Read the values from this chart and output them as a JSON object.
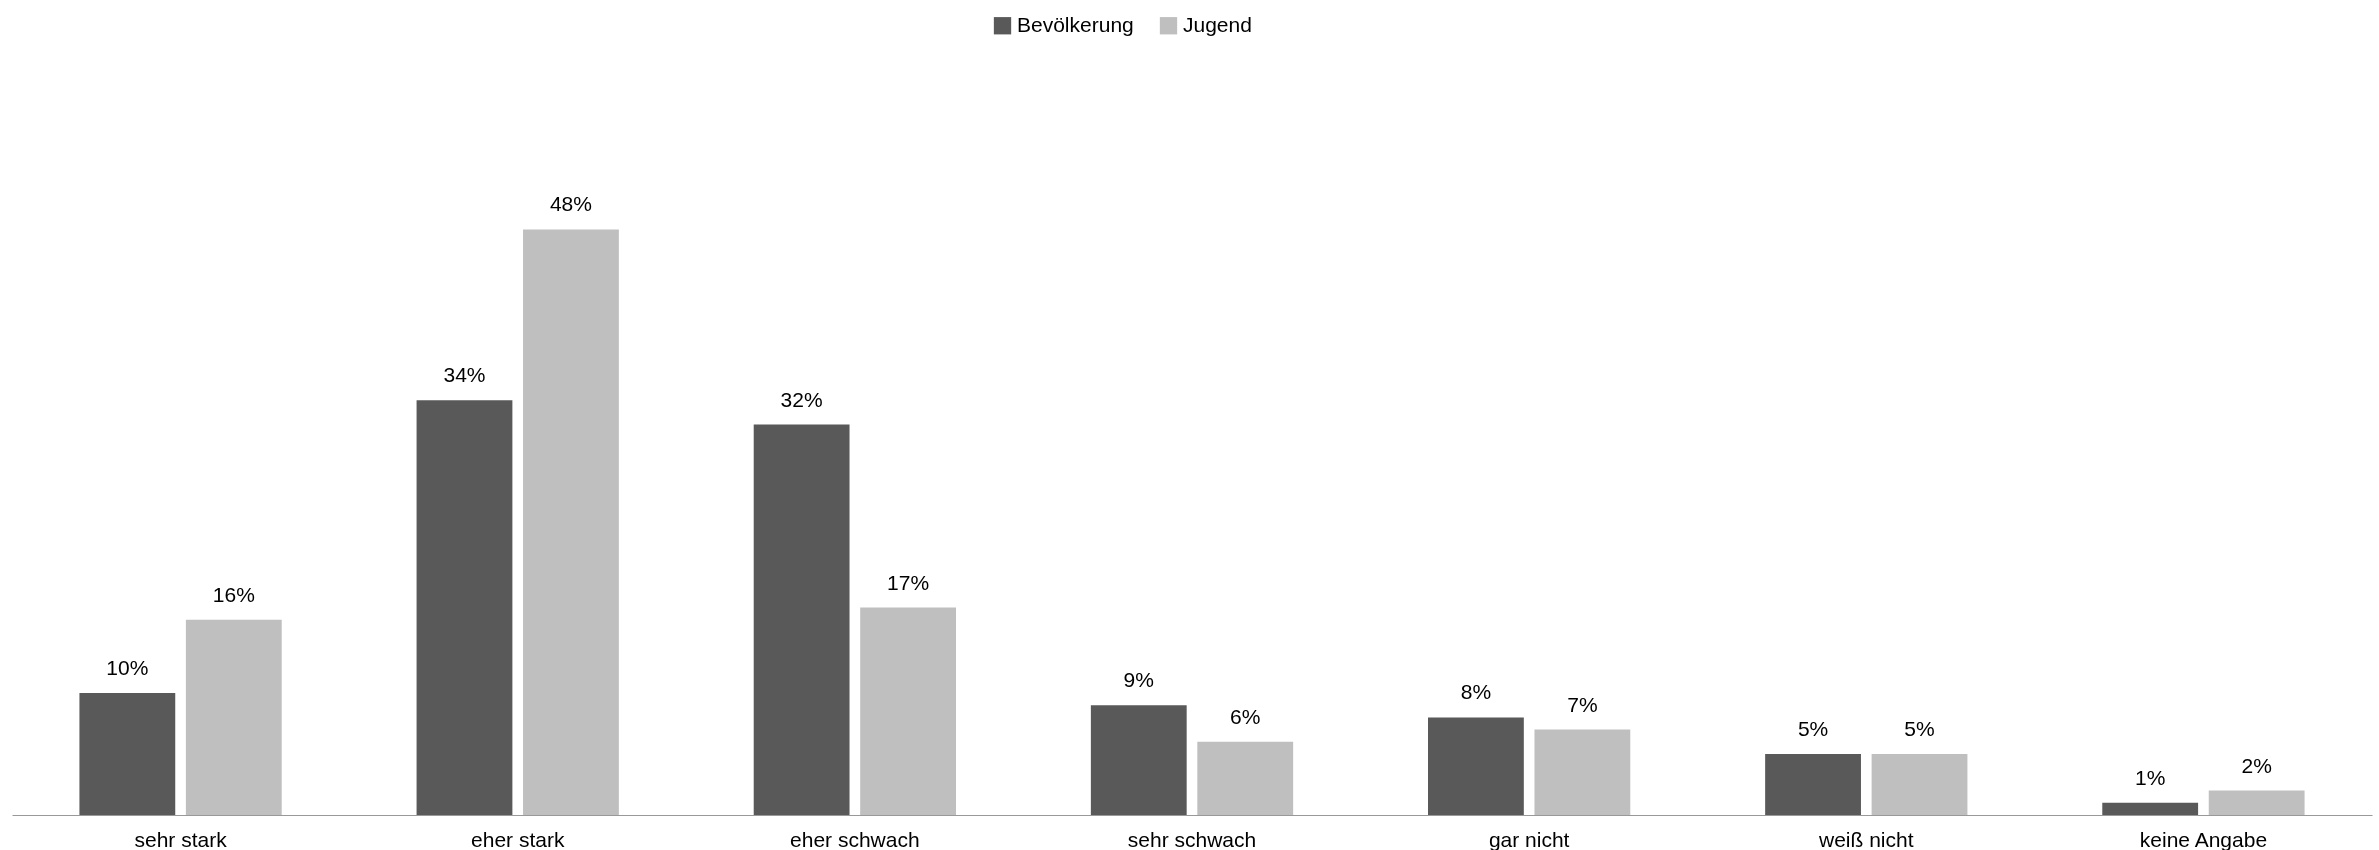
{
  "chart_data": {
    "type": "bar",
    "categories": [
      "sehr stark",
      "eher stark",
      "eher schwach",
      "sehr schwach",
      "gar nicht",
      "weiß nicht",
      "keine Angabe"
    ],
    "series": [
      {
        "name": "Bevölkerung",
        "color": "#595959",
        "values": [
          10,
          34,
          32,
          9,
          8,
          5,
          1
        ],
        "value_labels": [
          "10%",
          "34%",
          "32%",
          "9%",
          "8%",
          "5%",
          "1%"
        ]
      },
      {
        "name": "Jugend",
        "color": "#bfbfbf",
        "values": [
          16,
          48,
          17,
          6,
          7,
          5,
          2
        ],
        "value_labels": [
          "16%",
          "48%",
          "17%",
          "6%",
          "7%",
          "5%",
          "2%"
        ]
      }
    ],
    "legend": "top",
    "grid": false
  }
}
